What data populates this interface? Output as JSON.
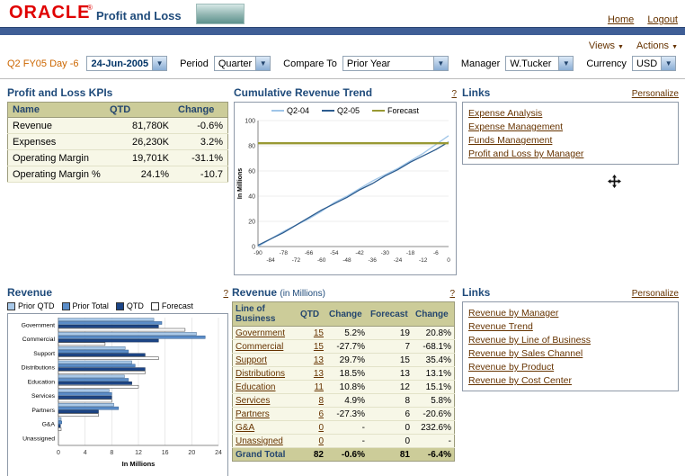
{
  "header": {
    "logo": "ORACLE",
    "logo_tm": "®",
    "title": "Profit and Loss",
    "home": "Home",
    "logout": "Logout"
  },
  "toolbar": {
    "views": "Views",
    "actions": "Actions"
  },
  "filters": {
    "period_context": "Q2 FY05 Day -6",
    "date": "24-Jun-2005",
    "period_label": "Period",
    "period_value": "Quarter",
    "compare_label": "Compare To",
    "compare_value": "Prior Year",
    "manager_label": "Manager",
    "manager_value": "W.Tucker",
    "currency_label": "Currency",
    "currency_value": "USD"
  },
  "kpis": {
    "title": "Profit and Loss KPIs",
    "columns": [
      "Name",
      "QTD",
      "Change"
    ],
    "rows": [
      {
        "name": "Revenue",
        "qtd": "81,780K",
        "change": "-0.6%"
      },
      {
        "name": "Expenses",
        "qtd": "26,230K",
        "change": "3.2%"
      },
      {
        "name": "Operating Margin",
        "qtd": "19,701K",
        "change": "-31.1%"
      },
      {
        "name": "Operating Margin %",
        "qtd": "24.1%",
        "change": "-10.7"
      }
    ]
  },
  "trend": {
    "title": "Cumulative Revenue Trend",
    "help": "?"
  },
  "links_top": {
    "title": "Links",
    "personalize": "Personalize",
    "items": [
      "Expense Analysis",
      "Expense Management",
      "Funds Management",
      "Profit and Loss by Manager"
    ]
  },
  "revenue_chart": {
    "title": "Revenue",
    "help": "?"
  },
  "revenue_table": {
    "title": "Revenue",
    "subtitle": "(in Millions)",
    "help": "?",
    "columns": [
      "Line of Business",
      "QTD",
      "Change",
      "Forecast",
      "Change"
    ],
    "rows": [
      {
        "lob": "Government",
        "qtd": "15",
        "change": "5.2%",
        "forecast": "19",
        "fchange": "20.8%"
      },
      {
        "lob": "Commercial",
        "qtd": "15",
        "change": "-27.7%",
        "forecast": "7",
        "fchange": "-68.1%"
      },
      {
        "lob": "Support",
        "qtd": "13",
        "change": "29.7%",
        "forecast": "15",
        "fchange": "35.4%"
      },
      {
        "lob": "Distributions",
        "qtd": "13",
        "change": "18.5%",
        "forecast": "13",
        "fchange": "13.1%"
      },
      {
        "lob": "Education",
        "qtd": "11",
        "change": "10.8%",
        "forecast": "12",
        "fchange": "15.1%"
      },
      {
        "lob": "Services",
        "qtd": "8",
        "change": "4.9%",
        "forecast": "8",
        "fchange": "5.8%"
      },
      {
        "lob": "Partners",
        "qtd": "6",
        "change": "-27.3%",
        "forecast": "6",
        "fchange": "-20.6%"
      },
      {
        "lob": "G&A",
        "qtd": "0",
        "change": "-",
        "forecast": "0",
        "fchange": "232.6%"
      },
      {
        "lob": "Unassigned",
        "qtd": "0",
        "change": "-",
        "forecast": "0",
        "fchange": "-"
      }
    ],
    "grand_total": {
      "lob": "Grand Total",
      "qtd": "82",
      "change": "-0.6%",
      "forecast": "81",
      "fchange": "-6.4%"
    }
  },
  "links_bottom": {
    "title": "Links",
    "personalize": "Personalize",
    "items": [
      "Revenue by Manager",
      "Revenue Trend",
      "Revenue by Line of Business",
      "Revenue by Sales Channel",
      "Revenue by Product",
      "Revenue by Cost Center"
    ]
  },
  "chart_data": [
    {
      "type": "line",
      "title": "Cumulative Revenue Trend",
      "ylabel": "In Millions",
      "ylim": [
        0,
        100
      ],
      "yticks": [
        0,
        20,
        40,
        60,
        80,
        100
      ],
      "x": [
        -90,
        -84,
        -78,
        -72,
        -66,
        -60,
        -54,
        -48,
        -42,
        -36,
        -30,
        -24,
        -18,
        -12,
        -6,
        0
      ],
      "series": [
        {
          "name": "Q2-04",
          "color": "#9fc5e8",
          "width": 1.3,
          "values": [
            0,
            6,
            12,
            17,
            22,
            28,
            35,
            40,
            46,
            52,
            57,
            62,
            68,
            74,
            81,
            88
          ]
        },
        {
          "name": "Q2-05",
          "color": "#2c5c8f",
          "width": 1.3,
          "values": [
            1,
            6,
            11,
            17,
            23,
            29,
            34,
            39,
            45,
            50,
            56,
            61,
            67,
            72,
            77,
            83
          ]
        },
        {
          "name": "Forecast",
          "color": "#999933",
          "width": 2.4,
          "values": [
            82,
            82,
            82,
            82,
            82,
            82,
            82,
            82,
            82,
            82,
            82,
            82,
            82,
            82,
            82,
            82
          ]
        }
      ]
    },
    {
      "type": "bar",
      "orientation": "horizontal",
      "title": "Revenue",
      "xlabel": "In Millions",
      "xlim": [
        0,
        24
      ],
      "xticks": [
        0,
        4,
        8,
        12,
        16,
        20,
        24
      ],
      "categories": [
        "Government",
        "Commercial",
        "Support",
        "Distributions",
        "Education",
        "Services",
        "Partners",
        "G&A",
        "Unassigned"
      ],
      "series": [
        {
          "name": "Prior QTD",
          "color": "#a8c8e8",
          "stroke": "#4d6f94",
          "values": [
            14.3,
            20.7,
            10.0,
            11.0,
            9.9,
            7.6,
            8.3,
            0.4,
            0
          ]
        },
        {
          "name": "Prior Total",
          "color": "#5b8dc8",
          "stroke": "#2f5a8c",
          "values": [
            15.5,
            22.0,
            10.5,
            11.5,
            10.5,
            8.0,
            9.0,
            0.5,
            0
          ]
        },
        {
          "name": "QTD",
          "color": "#1c4587",
          "stroke": "#10294f",
          "values": [
            15,
            15,
            13,
            13,
            11,
            8,
            6,
            0.3,
            0
          ]
        },
        {
          "name": "Forecast",
          "color": "#ffffff",
          "stroke": "#333333",
          "values": [
            19,
            7,
            15,
            13,
            12,
            8,
            6,
            0.4,
            0
          ]
        }
      ]
    }
  ]
}
